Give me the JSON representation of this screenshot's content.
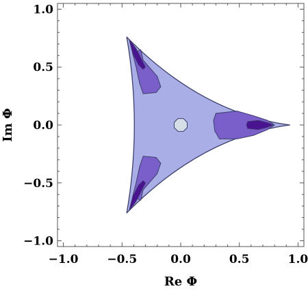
{
  "chart_data": {
    "type": "contour",
    "xlabel": "Re Φ",
    "ylabel": "Im Φ",
    "xlim": [
      -1.05,
      1.05
    ],
    "ylim": [
      -1.05,
      1.05
    ],
    "xticks": [
      -1.0,
      -0.5,
      0.0,
      0.5,
      1.0
    ],
    "yticks": [
      -1.0,
      -0.5,
      0.0,
      0.5,
      1.0
    ],
    "xtick_labels": [
      "−1.0",
      "−0.5",
      "0.0",
      "0.5",
      "1.0"
    ],
    "ytick_labels": [
      "−1.0",
      "−0.5",
      "0.0",
      "0.5",
      "1.0"
    ],
    "grid": false,
    "legend": "none",
    "colors": {
      "frame": "#555555",
      "level_outer": "#a9aee6",
      "level_mid": "#7a5fcb",
      "level_inner": "#4a1491",
      "center_hole": "#d5dde6",
      "contour_line": "#3c3f6a"
    },
    "regions": {
      "outer_triangle": {
        "level": "level_outer",
        "vertices": [
          [
            0.93,
            0.0
          ],
          [
            -0.46,
            0.76
          ],
          [
            -0.46,
            -0.76
          ]
        ],
        "edge_control": [
          [
            0.18,
            0.1
          ],
          [
            -0.33,
            0.0
          ],
          [
            0.18,
            -0.1
          ]
        ]
      },
      "center_hole": {
        "level": "center_hole",
        "center": [
          0.0,
          0.0
        ],
        "radius": 0.06
      },
      "mid_blobs": [
        {
          "level": "level_mid",
          "polygon": [
            [
              0.3,
              0.1
            ],
            [
              0.48,
              0.12
            ],
            [
              0.62,
              0.08
            ],
            [
              0.74,
              0.04
            ],
            [
              0.8,
              0.0
            ],
            [
              0.74,
              -0.04
            ],
            [
              0.62,
              -0.09
            ],
            [
              0.48,
              -0.12
            ],
            [
              0.33,
              -0.12
            ],
            [
              0.29,
              -0.05
            ],
            [
              0.28,
              0.04
            ]
          ]
        },
        {
          "level": "level_mid",
          "polygon": [
            [
              -0.34,
              0.65
            ],
            [
              -0.32,
              0.56
            ],
            [
              -0.2,
              0.42
            ],
            [
              -0.17,
              0.33
            ],
            [
              -0.21,
              0.28
            ],
            [
              -0.32,
              0.27
            ],
            [
              -0.35,
              0.36
            ],
            [
              -0.38,
              0.5
            ],
            [
              -0.41,
              0.62
            ]
          ]
        },
        {
          "level": "level_mid",
          "polygon": [
            [
              -0.34,
              -0.65
            ],
            [
              -0.32,
              -0.56
            ],
            [
              -0.2,
              -0.42
            ],
            [
              -0.17,
              -0.33
            ],
            [
              -0.21,
              -0.28
            ],
            [
              -0.32,
              -0.27
            ],
            [
              -0.35,
              -0.36
            ],
            [
              -0.38,
              -0.5
            ],
            [
              -0.41,
              -0.62
            ]
          ]
        }
      ],
      "inner_blobs": [
        {
          "level": "level_inner",
          "polygon": [
            [
              0.57,
              0.03
            ],
            [
              0.66,
              0.04
            ],
            [
              0.74,
              0.02
            ],
            [
              0.79,
              0.0
            ],
            [
              0.74,
              -0.02
            ],
            [
              0.66,
              -0.04
            ],
            [
              0.57,
              -0.03
            ],
            [
              0.56,
              0.0
            ]
          ]
        },
        {
          "level": "level_inner",
          "polygon": [
            [
              -0.44,
              0.74
            ],
            [
              -0.38,
              0.66
            ],
            [
              -0.33,
              0.56
            ],
            [
              -0.3,
              0.5
            ],
            [
              -0.32,
              0.48
            ],
            [
              -0.36,
              0.52
            ],
            [
              -0.41,
              0.62
            ]
          ]
        },
        {
          "level": "level_inner",
          "polygon": [
            [
              -0.44,
              -0.74
            ],
            [
              -0.38,
              -0.66
            ],
            [
              -0.33,
              -0.56
            ],
            [
              -0.3,
              -0.5
            ],
            [
              -0.32,
              -0.48
            ],
            [
              -0.36,
              -0.52
            ],
            [
              -0.41,
              -0.62
            ]
          ]
        }
      ]
    }
  }
}
